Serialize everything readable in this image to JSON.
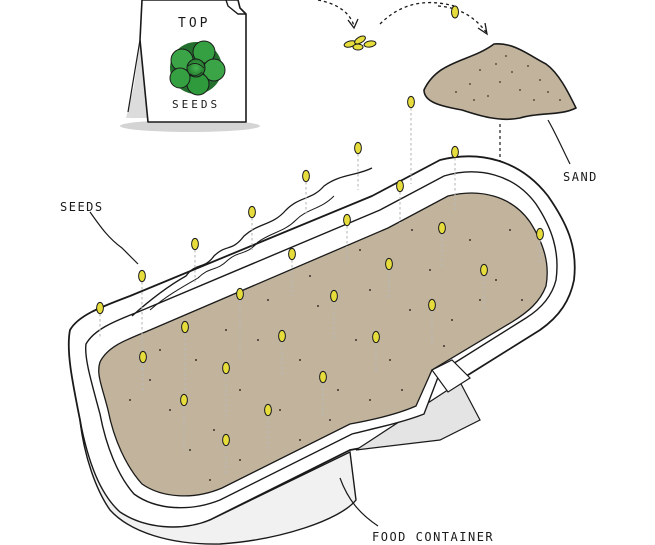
{
  "packet": {
    "top_text": "TOP",
    "bottom_text": "SEEDS"
  },
  "labels": {
    "seeds": "SEEDS",
    "sand": "SAND",
    "container": "FOOD CONTAINER"
  },
  "colors": {
    "sand_fill": "#c2b49c",
    "seed_fill": "#e6dd3c",
    "leaf_fill": "#2e9a3b",
    "container_fill": "#ffffff",
    "container_shadow": "#e4e4e4",
    "outline": "#1a1a1a",
    "drop_line": "#b8b8b8"
  },
  "icons": [
    "seed-packet-icon",
    "seed-icon",
    "sand-pile-icon",
    "food-container-icon",
    "arrow-icon"
  ]
}
